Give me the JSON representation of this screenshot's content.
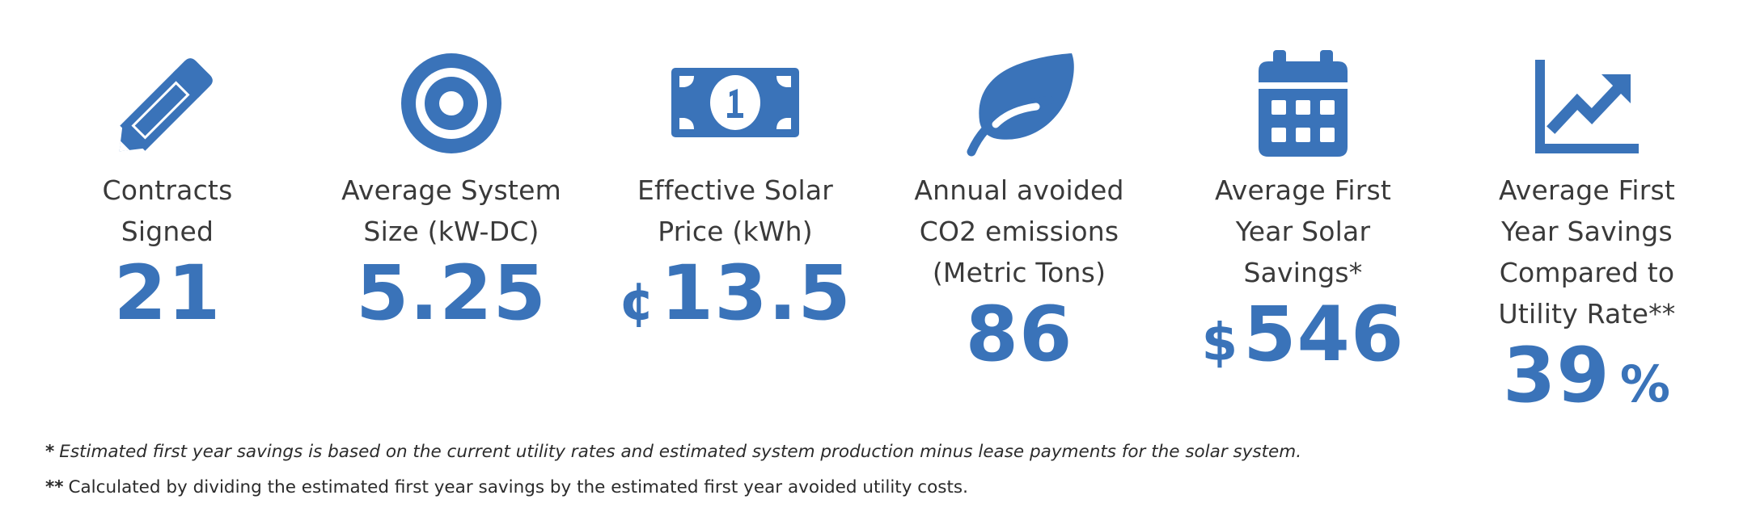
{
  "accent_color": "#3a73b9",
  "stats": [
    {
      "icon": "pencil-icon",
      "label_lines": [
        "Contracts",
        "Signed"
      ],
      "prefix": "",
      "value": "21",
      "suffix": ""
    },
    {
      "icon": "target-icon",
      "label_lines": [
        "Average System",
        "Size (kW-DC)"
      ],
      "prefix": "",
      "value": "5.25",
      "suffix": ""
    },
    {
      "icon": "dollar-bill-icon",
      "label_lines": [
        "Effective Solar",
        "Price (kWh)"
      ],
      "prefix": "¢",
      "value": "13.5",
      "suffix": ""
    },
    {
      "icon": "leaf-icon",
      "label_lines": [
        "Annual avoided",
        "CO2 emissions",
        "(Metric Tons)"
      ],
      "prefix": "",
      "value": "86",
      "suffix": ""
    },
    {
      "icon": "calendar-icon",
      "label_lines": [
        "Average First",
        "Year Solar",
        "Savings*"
      ],
      "prefix": "$",
      "value": "546",
      "suffix": ""
    },
    {
      "icon": "chart-line-up-icon",
      "label_lines": [
        "Average First",
        "Year Savings",
        "Compared to",
        "Utility Rate**"
      ],
      "prefix": "",
      "value": "39",
      "suffix": "%"
    }
  ],
  "footnotes": {
    "single": {
      "mark": "*",
      "text": "Estimated first year savings is based on the current utility rates and estimated system production minus lease payments for the solar system."
    },
    "double": {
      "mark": "**",
      "text": "Calculated by dividing the estimated first year savings by the estimated first year avoided utility costs."
    }
  }
}
